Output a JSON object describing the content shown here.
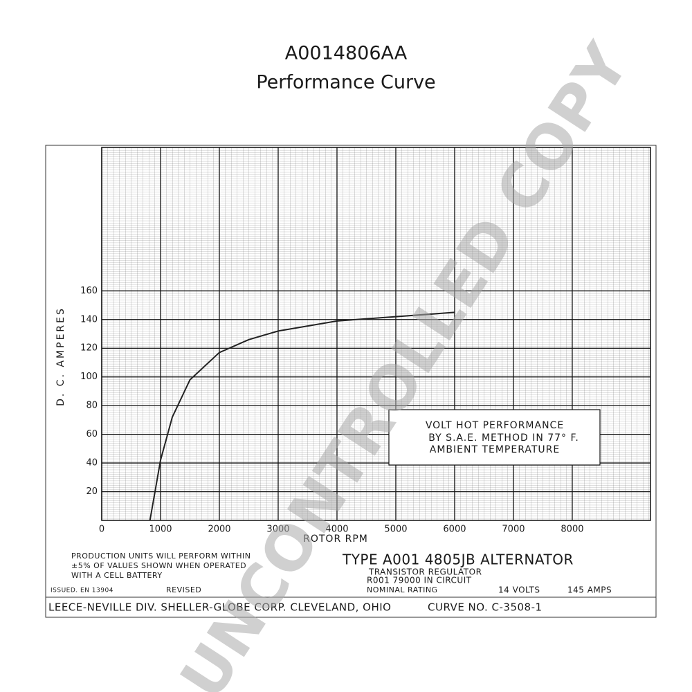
{
  "chart_data": {
    "type": "line",
    "title": "A0014806AA",
    "subtitle": "Performance Curve",
    "x_label": "ROTOR RPM",
    "y_label": "D. C. AMPERES",
    "x": [
      820,
      1000,
      1200,
      1500,
      2000,
      2500,
      3000,
      4000,
      5000,
      6000
    ],
    "series": [
      {
        "color": "#222222",
        "values": [
          0,
          42,
          72,
          98,
          117,
          126,
          132,
          139,
          142,
          145
        ]
      }
    ],
    "xlim": [
      0,
      9330
    ],
    "ylim": [
      0,
      260
    ],
    "xticks": [
      0,
      1000,
      2000,
      3000,
      4000,
      5000,
      6000,
      7000,
      8000
    ],
    "yticks": [
      20,
      40,
      60,
      80,
      100,
      120,
      140,
      160
    ],
    "grid": true,
    "box_text": [
      "VOLT HOT PERFORMANCE",
      "BY  S.A.E.  METHOD  IN  77° F.",
      "AMBIENT  TEMPERATURE"
    ],
    "notes": [
      "PRODUCTION  UNITS  WILL  PERFORM  WITHIN",
      "±5% OF  VALUES  SHOWN  WHEN  OPERATED",
      "WITH  A        CELL  BATTERY",
      "ISSUED. EN 13904",
      "REVISED",
      "TYPE  A001 4805JB   ALTERNATOR",
      "TRANSISTOR  REGULATOR",
      "R001 79000      IN CIRCUIT",
      "NOMINAL RATING",
      "14 VOLTS",
      "145  AMPS",
      "LEECE-NEVILLE DIV. SHELLER-GLOBE CORP. CLEVELAND, OHIO",
      "CURVE NO. C-3508-1"
    ],
    "watermark": "UNCONTROLLED COPY"
  }
}
